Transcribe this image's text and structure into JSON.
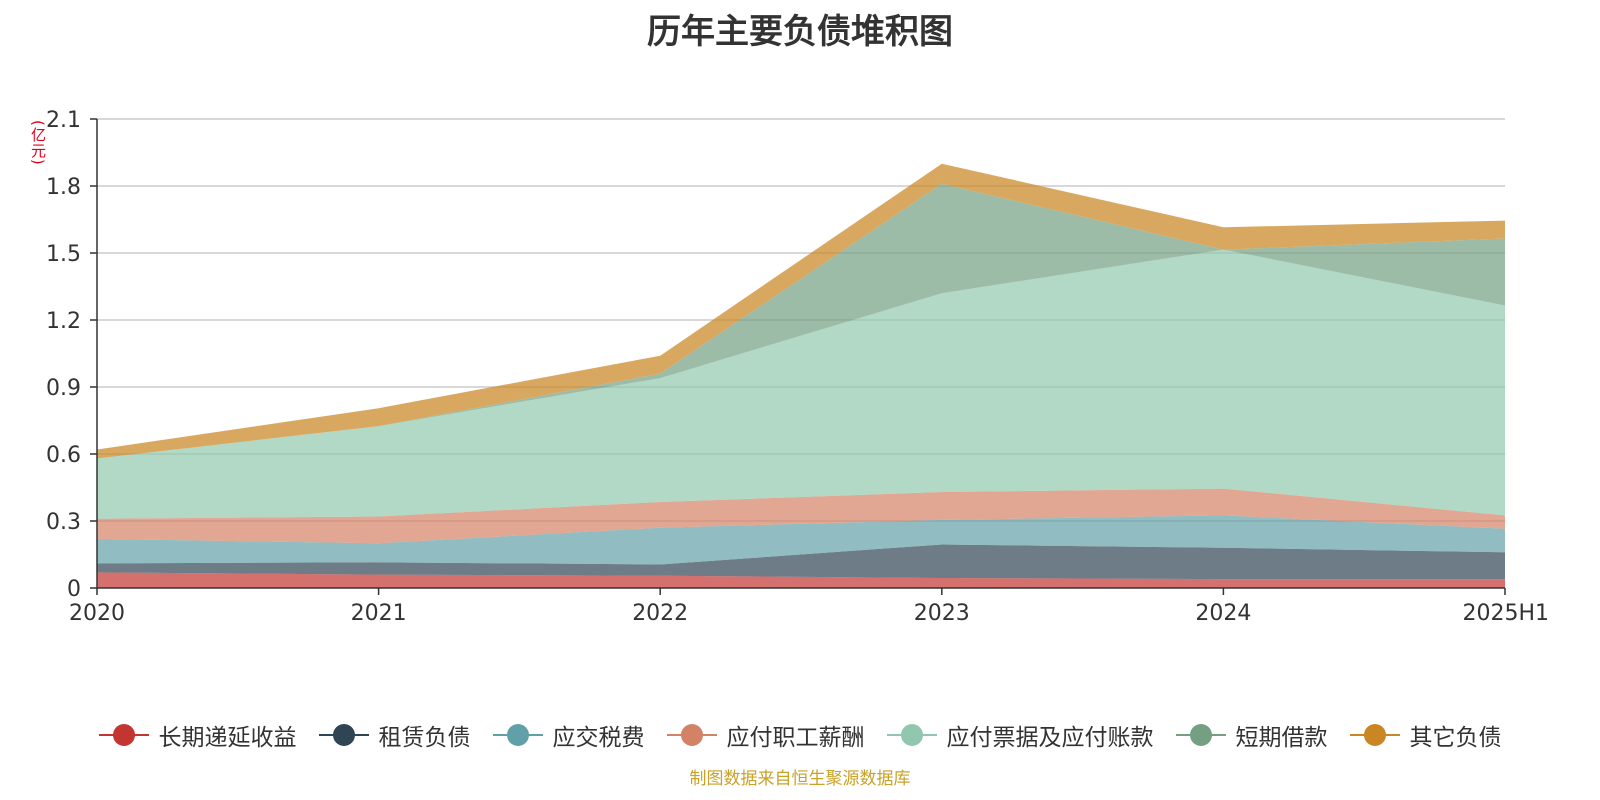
{
  "chart_data": {
    "type": "area",
    "stacked": true,
    "title": "历年主要负债堆积图",
    "unit_label": "(亿元)",
    "categories": [
      "2020",
      "2021",
      "2022",
      "2023",
      "2024",
      "2025H1"
    ],
    "ylim": [
      0,
      2.1
    ],
    "yticks": [
      "0",
      "0.3",
      "0.6",
      "0.9",
      "1.2",
      "1.5",
      "1.8",
      "2.1"
    ],
    "grid": true,
    "legend_position": "bottom",
    "series": [
      {
        "name": "长期递延收益",
        "color": "#c23531",
        "values": [
          0.07,
          0.06,
          0.055,
          0.045,
          0.04,
          0.04
        ]
      },
      {
        "name": "租赁负债",
        "color": "#2f4554",
        "values": [
          0.04,
          0.055,
          0.05,
          0.15,
          0.14,
          0.12
        ]
      },
      {
        "name": "应交税费",
        "color": "#61a0a8",
        "values": [
          0.11,
          0.085,
          0.165,
          0.11,
          0.145,
          0.105
        ]
      },
      {
        "name": "应付职工薪酬",
        "color": "#d48265",
        "values": [
          0.09,
          0.12,
          0.115,
          0.125,
          0.12,
          0.06
        ]
      },
      {
        "name": "应付票据及应付账款",
        "color": "#91c7ae",
        "values": [
          0.27,
          0.405,
          0.555,
          0.89,
          1.07,
          0.94
        ]
      },
      {
        "name": "短期借款",
        "color": "#749f83",
        "values": [
          0.0,
          0.0,
          0.02,
          0.49,
          0.0,
          0.3
        ]
      },
      {
        "name": "其它负债",
        "color": "#ca8622",
        "values": [
          0.04,
          0.08,
          0.08,
          0.09,
          0.1,
          0.08
        ]
      }
    ],
    "source": "制图数据来自恒生聚源数据库"
  }
}
